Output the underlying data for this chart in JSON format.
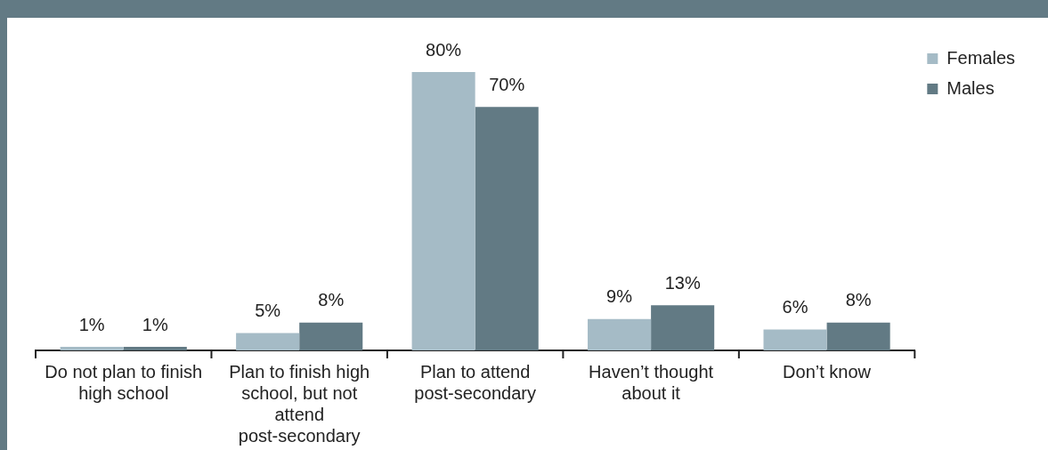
{
  "chart_data": {
    "type": "bar",
    "categories": [
      "Do not plan to finish high school",
      "Plan to finish high school, but not attend post-secondary",
      "Plan to attend post-secondary",
      "Haven’t thought about it",
      "Don’t know"
    ],
    "series": [
      {
        "name": "Females",
        "color": "#a5bbc6",
        "values": [
          1,
          5,
          80,
          9,
          6
        ],
        "value_labels": [
          "1%",
          "5%",
          "80%",
          "9%",
          "6%"
        ]
      },
      {
        "name": "Males",
        "color": "#627a84",
        "values": [
          1,
          8,
          70,
          13,
          8
        ],
        "value_labels": [
          "1%",
          "8%",
          "70%",
          "13%",
          "8%"
        ]
      }
    ],
    "legend": "right",
    "grid": false
  }
}
